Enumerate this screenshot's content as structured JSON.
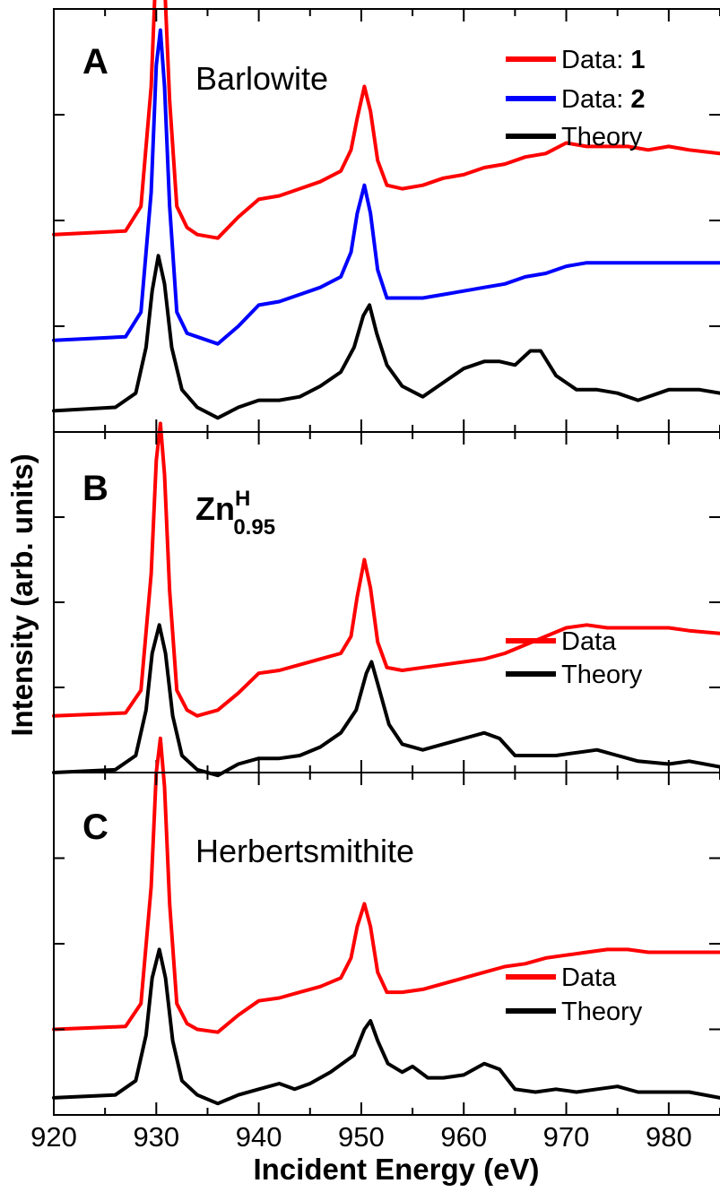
{
  "chart_data": {
    "type": "line",
    "xlabel": "Incident Energy (eV)",
    "ylabel": "Intensity (arb. units)",
    "xlim": [
      920,
      985
    ],
    "x_ticks": [
      "920",
      "930",
      "940",
      "950",
      "960",
      "970",
      "980"
    ],
    "ylim": [
      0,
      1.2
    ],
    "grid": false,
    "panels": [
      {
        "letter": "A",
        "sample_name": "Barlowite",
        "legend_position": "top-right",
        "legend": [
          {
            "prefix": "Data: ",
            "bold": "1",
            "color": "#ff0000"
          },
          {
            "prefix": "Data: ",
            "bold": "2",
            "color": "#0000ff"
          },
          {
            "prefix": "Theory",
            "bold": "",
            "color": "#000000"
          }
        ],
        "series": [
          {
            "name": "Data: 1",
            "color": "#ff0000",
            "offset": 0.56,
            "x": [
              920,
              927,
              928.5,
              929.5,
              930,
              930.4,
              930.8,
              931.3,
              932,
              933,
              934,
              936,
              938,
              940,
              942,
              944,
              946,
              948,
              949,
              949.6,
              950.3,
              950.9,
              951.6,
              952.5,
              954,
              956,
              958,
              960,
              962,
              964,
              966,
              968,
              970,
              972,
              974,
              976,
              978,
              980,
              982,
              985
            ],
            "y": [
              0,
              0.01,
              0.08,
              0.42,
              0.78,
              0.87,
              0.72,
              0.38,
              0.08,
              0.02,
              0.0,
              -0.01,
              0.05,
              0.1,
              0.11,
              0.13,
              0.15,
              0.18,
              0.24,
              0.33,
              0.42,
              0.35,
              0.21,
              0.14,
              0.13,
              0.14,
              0.16,
              0.17,
              0.19,
              0.2,
              0.22,
              0.23,
              0.26,
              0.25,
              0.25,
              0.25,
              0.24,
              0.25,
              0.24,
              0.23
            ]
          },
          {
            "name": "Data: 2",
            "color": "#0000ff",
            "offset": 0.26,
            "x": [
              920,
              927,
              928.5,
              929.5,
              930,
              930.4,
              930.8,
              931.3,
              932,
              933,
              934,
              936,
              938,
              940,
              942,
              944,
              946,
              948,
              949,
              949.6,
              950.3,
              950.9,
              951.6,
              952.5,
              954,
              956,
              958,
              960,
              962,
              964,
              966,
              968,
              970,
              972,
              974,
              976,
              978,
              980,
              982,
              985
            ],
            "y": [
              0,
              0.01,
              0.08,
              0.42,
              0.78,
              0.88,
              0.72,
              0.38,
              0.08,
              0.02,
              0.01,
              -0.01,
              0.04,
              0.1,
              0.11,
              0.13,
              0.15,
              0.18,
              0.25,
              0.36,
              0.44,
              0.36,
              0.2,
              0.12,
              0.12,
              0.12,
              0.13,
              0.14,
              0.15,
              0.16,
              0.18,
              0.19,
              0.21,
              0.22,
              0.22,
              0.22,
              0.22,
              0.22,
              0.22,
              0.22
            ]
          },
          {
            "name": "Theory",
            "color": "#000000",
            "offset": 0.06,
            "x": [
              920,
              926,
              928,
              929,
              929.6,
              930.2,
              930.8,
              931.5,
              932.5,
              934,
              936,
              938,
              940,
              942,
              944,
              946,
              948,
              949.3,
              950.2,
              950.8,
              951.5,
              952.5,
              954,
              956,
              958,
              960,
              962,
              963.5,
              965,
              966.5,
              967.5,
              969,
              971,
              973,
              975,
              977,
              980,
              983,
              985
            ],
            "y": [
              0,
              0.01,
              0.05,
              0.18,
              0.34,
              0.44,
              0.36,
              0.18,
              0.06,
              0.01,
              -0.02,
              0.01,
              0.03,
              0.03,
              0.04,
              0.07,
              0.11,
              0.18,
              0.27,
              0.3,
              0.22,
              0.13,
              0.07,
              0.04,
              0.08,
              0.12,
              0.14,
              0.14,
              0.13,
              0.17,
              0.17,
              0.1,
              0.06,
              0.06,
              0.05,
              0.03,
              0.06,
              0.06,
              0.05
            ]
          }
        ]
      },
      {
        "letter": "B",
        "sample_name": "Zn",
        "sample_sup": "H",
        "sample_sub": "0.95",
        "legend_position": "right",
        "legend": [
          {
            "prefix": "Data",
            "bold": "",
            "color": "#ff0000"
          },
          {
            "prefix": "Theory",
            "bold": "",
            "color": "#000000"
          }
        ],
        "series": [
          {
            "name": "Data",
            "color": "#ff0000",
            "offset": 0.2,
            "x": [
              920,
              927,
              928.5,
              929.5,
              930,
              930.4,
              930.8,
              931.3,
              932,
              933,
              934,
              936,
              938,
              940,
              942,
              944,
              946,
              948,
              949,
              949.6,
              950.3,
              950.9,
              951.6,
              952.5,
              954,
              956,
              958,
              960,
              962,
              964,
              966,
              968,
              970,
              972,
              974,
              976,
              978,
              980,
              982,
              985
            ],
            "y": [
              0,
              0.01,
              0.09,
              0.5,
              0.9,
              1.03,
              0.85,
              0.44,
              0.09,
              0.02,
              0.0,
              0.02,
              0.08,
              0.15,
              0.16,
              0.18,
              0.2,
              0.22,
              0.28,
              0.42,
              0.55,
              0.45,
              0.26,
              0.17,
              0.16,
              0.17,
              0.18,
              0.19,
              0.2,
              0.22,
              0.25,
              0.28,
              0.31,
              0.32,
              0.31,
              0.31,
              0.31,
              0.31,
              0.3,
              0.29
            ]
          },
          {
            "name": "Theory",
            "color": "#000000",
            "offset": 0.0,
            "x": [
              920,
              926,
              928,
              929,
              929.6,
              930.3,
              930.9,
              931.6,
              932.5,
              934,
              936,
              938,
              940,
              942,
              944,
              946,
              948,
              949.5,
              950.5,
              951,
              951.7,
              952.7,
              954,
              956,
              958,
              960,
              962,
              963.5,
              965,
              967,
              969,
              971,
              973,
              975,
              977,
              980,
              982,
              985
            ],
            "y": [
              0,
              0.01,
              0.06,
              0.22,
              0.42,
              0.52,
              0.42,
              0.2,
              0.06,
              0.01,
              -0.01,
              0.03,
              0.05,
              0.05,
              0.06,
              0.09,
              0.14,
              0.22,
              0.35,
              0.39,
              0.3,
              0.17,
              0.1,
              0.08,
              0.1,
              0.12,
              0.14,
              0.12,
              0.06,
              0.06,
              0.06,
              0.07,
              0.08,
              0.06,
              0.04,
              0.03,
              0.04,
              0.02
            ]
          }
        ]
      },
      {
        "letter": "C",
        "sample_name": "Herbertsmithite",
        "legend_position": "right",
        "legend": [
          {
            "prefix": "Data",
            "bold": "",
            "color": "#ff0000"
          },
          {
            "prefix": "Theory",
            "bold": "",
            "color": "#000000"
          }
        ],
        "series": [
          {
            "name": "Data",
            "color": "#ff0000",
            "offset": 0.3,
            "x": [
              920,
              927,
              928.5,
              929.5,
              930,
              930.4,
              930.8,
              931.3,
              932,
              933,
              934,
              936,
              938,
              940,
              942,
              944,
              946,
              948,
              949,
              949.6,
              950.3,
              950.9,
              951.6,
              952.5,
              954,
              956,
              958,
              960,
              962,
              964,
              966,
              968,
              970,
              972,
              974,
              976,
              978,
              980,
              982,
              985
            ],
            "y": [
              0,
              0.01,
              0.09,
              0.5,
              0.9,
              1.02,
              0.85,
              0.44,
              0.09,
              0.02,
              0.0,
              -0.01,
              0.05,
              0.1,
              0.11,
              0.13,
              0.15,
              0.18,
              0.25,
              0.36,
              0.44,
              0.36,
              0.2,
              0.13,
              0.13,
              0.14,
              0.16,
              0.18,
              0.2,
              0.22,
              0.23,
              0.25,
              0.26,
              0.27,
              0.28,
              0.28,
              0.27,
              0.27,
              0.27,
              0.27
            ]
          },
          {
            "name": "Theory",
            "color": "#000000",
            "offset": 0.06,
            "x": [
              920,
              926,
              928,
              929,
              929.6,
              930.3,
              930.9,
              931.6,
              932.5,
              934,
              936,
              938,
              940,
              942,
              943.5,
              945,
              947,
              949.3,
              950.3,
              950.9,
              951.6,
              952.6,
              954,
              955,
              956.5,
              958,
              960,
              962,
              963.5,
              965,
              967,
              969,
              971,
              973,
              975,
              977,
              980,
              982,
              985
            ],
            "y": [
              0,
              0.01,
              0.06,
              0.22,
              0.42,
              0.52,
              0.42,
              0.2,
              0.06,
              0.01,
              -0.02,
              0.01,
              0.03,
              0.05,
              0.03,
              0.05,
              0.09,
              0.15,
              0.24,
              0.27,
              0.2,
              0.12,
              0.09,
              0.11,
              0.07,
              0.07,
              0.08,
              0.12,
              0.1,
              0.03,
              0.02,
              0.03,
              0.02,
              0.03,
              0.04,
              0.02,
              0.02,
              0.02,
              0.0
            ]
          }
        ]
      }
    ]
  }
}
